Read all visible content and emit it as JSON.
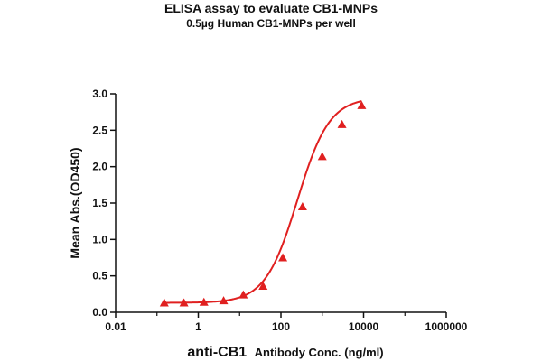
{
  "chart_data": {
    "type": "scatter",
    "title": "ELISA assay to evaluate CB1-MNPs",
    "subtitle": "0.5µg Human CB1-MNPs per well",
    "xlabel_bold": "anti-CB1",
    "xlabel_rest": "Antibody Conc. (ng/ml)",
    "ylabel": "Mean Abs.(OD450)",
    "x_scale": "log",
    "xlim": [
      0.01,
      1000000
    ],
    "ylim": [
      0,
      3.0
    ],
    "x_ticks": [
      0.01,
      1,
      100,
      10000,
      1000000
    ],
    "x_tick_labels": [
      "0.01",
      "1",
      "100",
      "10000",
      "1000000"
    ],
    "y_ticks": [
      0,
      0.5,
      1.0,
      1.5,
      2.0,
      2.5,
      3.0
    ],
    "y_tick_labels": [
      "0.0",
      "0.5",
      "1.0",
      "1.5",
      "2.0",
      "2.5",
      "3.0"
    ],
    "grid": false,
    "color": "#e02020",
    "marker": "triangle",
    "fit": "4PL",
    "series": [
      {
        "x": [
          0.15,
          0.45,
          1.37,
          4.1,
          12.3,
          37,
          111,
          333,
          1000,
          3000,
          9000
        ],
        "y": [
          0.13,
          0.13,
          0.14,
          0.16,
          0.24,
          0.36,
          0.75,
          1.45,
          2.14,
          2.58,
          2.84
        ]
      }
    ]
  }
}
